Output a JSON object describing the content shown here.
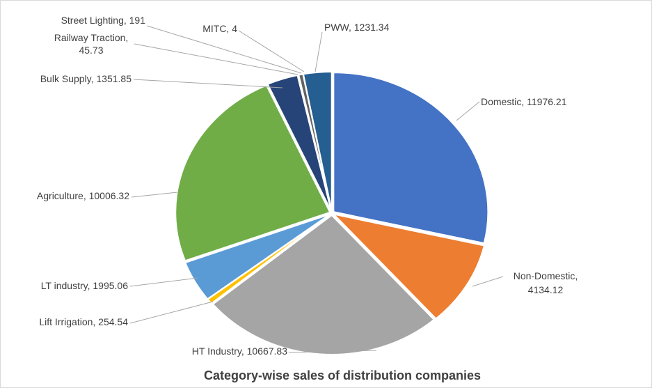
{
  "chart_data": {
    "type": "pie",
    "title": "Category-wise sales of distribution companies",
    "slices": [
      {
        "label": "Domestic",
        "value": 11976.21,
        "text": "Domestic, 11976.21",
        "color": "#4472c4"
      },
      {
        "label": "Non-Domestic",
        "value": 4134.12,
        "text": [
          "Non-Domestic,",
          "4134.12"
        ],
        "color": "#ed7d31"
      },
      {
        "label": "HT Industry",
        "value": 10667.83,
        "text": "HT Industry, 10667.83",
        "color": "#a5a5a5"
      },
      {
        "label": "Lift Irrigation",
        "value": 254.54,
        "text": "Lift Irrigation, 254.54",
        "color": "#ffc000"
      },
      {
        "label": "LT industry",
        "value": 1995.06,
        "text": "LT industry, 1995.06",
        "color": "#5b9bd5"
      },
      {
        "label": "Agriculture",
        "value": 10006.32,
        "text": "Agriculture, 10006.32",
        "color": "#70ad47"
      },
      {
        "label": "Bulk Supply",
        "value": 1351.85,
        "text": "Bulk Supply, 1351.85",
        "color": "#264478"
      },
      {
        "label": "Railway Traction",
        "value": 45.73,
        "text": [
          "Railway Traction,",
          "45.73"
        ],
        "color": "#9e480e"
      },
      {
        "label": "Street Lighting",
        "value": 191,
        "text": "Street Lighting, 191",
        "color": "#636363"
      },
      {
        "label": "MITC",
        "value": 4,
        "text": "MITC, 4",
        "color": "#997300"
      },
      {
        "label": "PWW",
        "value": 1231.34,
        "text": "PWW, 1231.34",
        "color": "#255e91"
      }
    ]
  }
}
